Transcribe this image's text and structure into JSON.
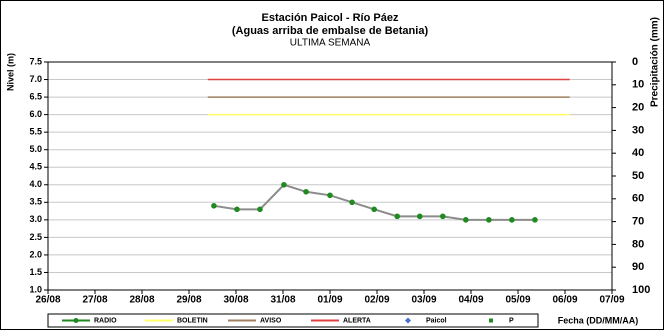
{
  "chart_data": {
    "type": "line",
    "title": "Estación Paicol - Río Páez",
    "subtitle": "(Aguas arriba de embalse de Betania)",
    "subtitle2": "ULTIMA SEMANA",
    "y_label": "Nivel (m)",
    "y2_label": "Precipitación (mm)",
    "x_label": "Fecha (DD/MM/AA)",
    "xlim": [
      0,
      12
    ],
    "xticks": [
      {
        "value": 0,
        "label": "26/08"
      },
      {
        "value": 1,
        "label": "27/08"
      },
      {
        "value": 2,
        "label": "28/08"
      },
      {
        "value": 3,
        "label": "29/08"
      },
      {
        "value": 4,
        "label": "30/08"
      },
      {
        "value": 5,
        "label": "31/08"
      },
      {
        "value": 6,
        "label": "01/09"
      },
      {
        "value": 7,
        "label": "02/09"
      },
      {
        "value": 8,
        "label": "03/09"
      },
      {
        "value": 9,
        "label": "04/09"
      },
      {
        "value": 10,
        "label": "05/09"
      },
      {
        "value": 11,
        "label": "06/09"
      },
      {
        "value": 12,
        "label": "07/09"
      }
    ],
    "ylim": [
      1,
      7.5
    ],
    "yticks": [
      {
        "value": 1,
        "label": "1.0"
      },
      1.5,
      {
        "value": 2,
        "label": "2.0"
      },
      2.5,
      {
        "value": 3,
        "label": "3.0"
      },
      3.5,
      {
        "value": 4,
        "label": "4.0"
      },
      4.5,
      {
        "value": 5,
        "label": "5.0"
      },
      5.5,
      {
        "value": 6,
        "label": "6.0"
      },
      6.5,
      {
        "value": 7,
        "label": "7.0"
      },
      7.5
    ],
    "y2lim": [
      100,
      0
    ],
    "y2ticks": [
      0,
      10,
      20,
      30,
      40,
      50,
      60,
      70,
      80,
      90,
      100
    ],
    "grid": true,
    "series": [
      {
        "name": "RADIO",
        "color": "#1f8a1f",
        "line_color": "#8c8c8c",
        "marker": "circle",
        "x": [
          3.53,
          4.02,
          4.51,
          5.02,
          5.49,
          6.0,
          6.47,
          6.94,
          7.43,
          7.91,
          8.4,
          8.89,
          9.38,
          9.87,
          10.36
        ],
        "values": [
          3.4,
          3.3,
          3.3,
          4.0,
          3.8,
          3.7,
          3.5,
          3.3,
          3.1,
          3.1,
          3.1,
          3.0,
          3.0,
          3.0,
          3.0
        ]
      },
      {
        "name": "BOLETIN",
        "color": "#ffff66",
        "x": [
          3.4,
          11.1
        ],
        "values": [
          6.0,
          6.0
        ]
      },
      {
        "name": "AVISO",
        "color": "#a08060",
        "x": [
          3.4,
          11.1
        ],
        "values": [
          6.5,
          6.5
        ]
      },
      {
        "name": "ALERTA",
        "color": "#e04040",
        "x": [
          3.4,
          11.1
        ],
        "values": [
          7.0,
          7.0
        ]
      },
      {
        "name": "Paicol",
        "color": "#4a6fc8",
        "marker": "diamond"
      },
      {
        "name": "P",
        "color": "#1f8a1f",
        "marker": "square"
      }
    ]
  }
}
